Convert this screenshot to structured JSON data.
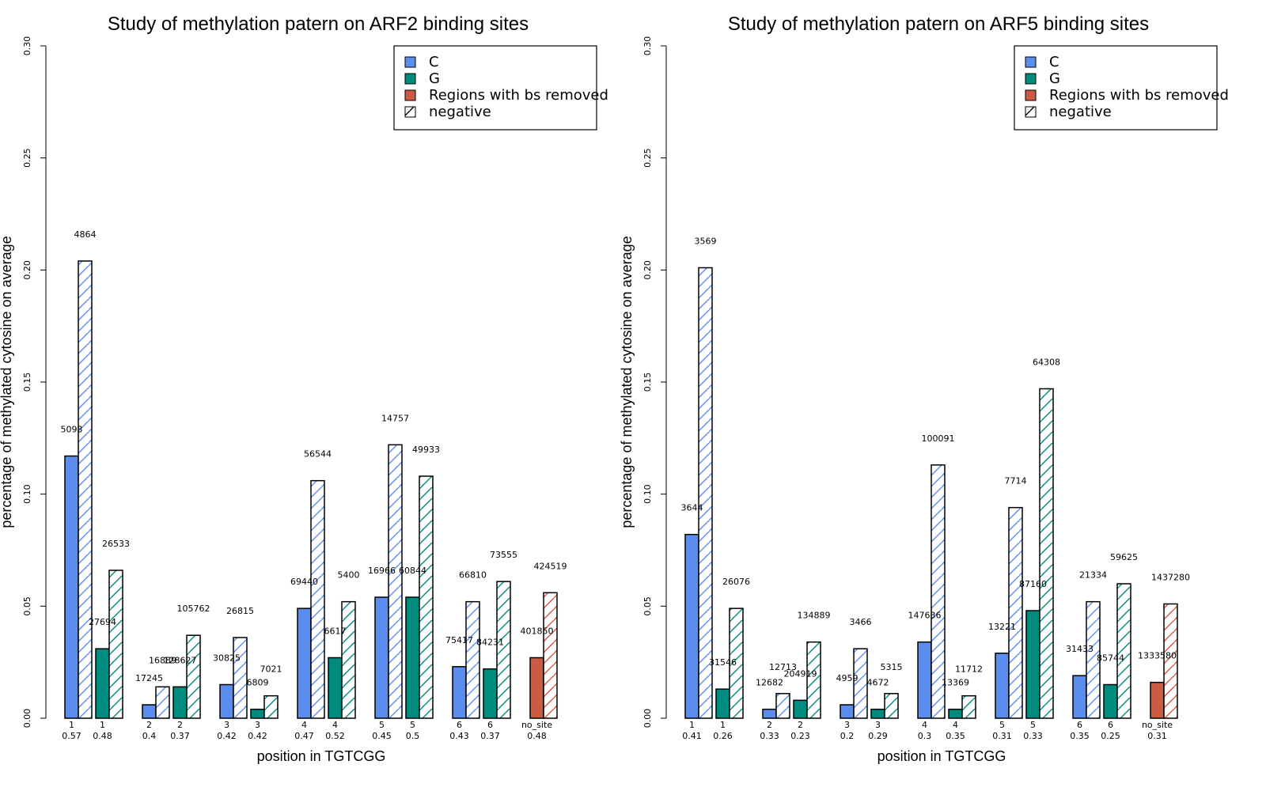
{
  "colors": {
    "C": "#5b8def",
    "G": "#008b7f",
    "Regions with bs removed": "#cd5a43",
    "negative": "#ffffff",
    "outline": "#000000"
  },
  "chart_data": [
    {
      "type": "bar",
      "title": "Study of methylation patern on ARF2 binding sites",
      "xlabel": "position in TGTCGG",
      "ylabel": "percentage of methylated cytosine on average",
      "ylim": [
        0,
        0.3
      ],
      "yticks": [
        "0.00",
        "0.05",
        "0.10",
        "0.15",
        "0.20",
        "0.25",
        "0.30"
      ],
      "legend": {
        "position": "top-right",
        "entries": [
          "C",
          "G",
          "Regions with bs removed",
          "negative"
        ]
      },
      "groups": [
        {
          "label": "1",
          "sublabel": "0.57",
          "base": "C",
          "pos_value": 0.117,
          "pos_count": "5093",
          "neg_value": 0.204,
          "neg_count": "4864"
        },
        {
          "label": "1",
          "sublabel": "0.48",
          "base": "G",
          "pos_value": 0.031,
          "pos_count": "27694",
          "neg_value": 0.066,
          "neg_count": "26533"
        },
        {
          "label": "2",
          "sublabel": "0.4",
          "base": "C",
          "pos_value": 0.006,
          "pos_count": "17245",
          "neg_value": 0.014,
          "neg_count": "16889"
        },
        {
          "label": "2",
          "sublabel": "0.37",
          "base": "G",
          "pos_value": 0.014,
          "pos_count": "128627",
          "neg_value": 0.037,
          "neg_count": "105762"
        },
        {
          "label": "3",
          "sublabel": "0.42",
          "base": "C",
          "pos_value": 0.015,
          "pos_count": "30825",
          "neg_value": 0.036,
          "neg_count": "26815"
        },
        {
          "label": "3",
          "sublabel": "0.42",
          "base": "G",
          "pos_value": 0.004,
          "pos_count": "6809",
          "neg_value": 0.01,
          "neg_count": "7021"
        },
        {
          "label": "4",
          "sublabel": "0.47",
          "base": "C",
          "pos_value": 0.049,
          "pos_count": "69440",
          "neg_value": 0.106,
          "neg_count": "56544"
        },
        {
          "label": "4",
          "sublabel": "0.52",
          "base": "G",
          "pos_value": 0.027,
          "pos_count": "6617",
          "neg_value": 0.052,
          "neg_count": "5400"
        },
        {
          "label": "5",
          "sublabel": "0.45",
          "base": "C",
          "pos_value": 0.054,
          "pos_count": "16966",
          "neg_value": 0.122,
          "neg_count": "14757"
        },
        {
          "label": "5",
          "sublabel": "0.5",
          "base": "G",
          "pos_value": 0.054,
          "pos_count": "60844",
          "neg_value": 0.108,
          "neg_count": "49933"
        },
        {
          "label": "6",
          "sublabel": "0.43",
          "base": "C",
          "pos_value": 0.023,
          "pos_count": "75417",
          "neg_value": 0.052,
          "neg_count": "66810"
        },
        {
          "label": "6",
          "sublabel": "0.37",
          "base": "G",
          "pos_value": 0.022,
          "pos_count": "84231",
          "neg_value": 0.061,
          "neg_count": "73555"
        },
        {
          "label": "no_site",
          "sublabel": "0.48",
          "base": "Regions with bs removed",
          "pos_value": 0.027,
          "pos_count": "401850",
          "neg_value": 0.056,
          "neg_count": "424519"
        }
      ]
    },
    {
      "type": "bar",
      "title": "Study of methylation patern on ARF5 binding sites",
      "xlabel": "position in TGTCGG",
      "ylabel": "percentage of methylated cytosine on average",
      "ylim": [
        0,
        0.3
      ],
      "yticks": [
        "0.00",
        "0.05",
        "0.10",
        "0.15",
        "0.20",
        "0.25",
        "0.30"
      ],
      "legend": {
        "position": "top-right",
        "entries": [
          "C",
          "G",
          "Regions with bs removed",
          "negative"
        ]
      },
      "groups": [
        {
          "label": "1",
          "sublabel": "0.41",
          "base": "C",
          "pos_value": 0.082,
          "pos_count": "3644",
          "neg_value": 0.201,
          "neg_count": "3569"
        },
        {
          "label": "1",
          "sublabel": "0.26",
          "base": "G",
          "pos_value": 0.013,
          "pos_count": "31546",
          "neg_value": 0.049,
          "neg_count": "26076"
        },
        {
          "label": "2",
          "sublabel": "0.33",
          "base": "C",
          "pos_value": 0.004,
          "pos_count": "12682",
          "neg_value": 0.011,
          "neg_count": "12713"
        },
        {
          "label": "2",
          "sublabel": "0.23",
          "base": "G",
          "pos_value": 0.008,
          "pos_count": "204919",
          "neg_value": 0.034,
          "neg_count": "134889"
        },
        {
          "label": "3",
          "sublabel": "0.2",
          "base": "C",
          "pos_value": 0.006,
          "pos_count": "4959",
          "neg_value": 0.031,
          "neg_count": "3466"
        },
        {
          "label": "3",
          "sublabel": "0.29",
          "base": "G",
          "pos_value": 0.004,
          "pos_count": "4672",
          "neg_value": 0.011,
          "neg_count": "5315"
        },
        {
          "label": "4",
          "sublabel": "0.3",
          "base": "C",
          "pos_value": 0.034,
          "pos_count": "147636",
          "neg_value": 0.113,
          "neg_count": "100091"
        },
        {
          "label": "4",
          "sublabel": "0.35",
          "base": "G",
          "pos_value": 0.004,
          "pos_count": "13369",
          "neg_value": 0.01,
          "neg_count": "11712"
        },
        {
          "label": "5",
          "sublabel": "0.31",
          "base": "C",
          "pos_value": 0.029,
          "pos_count": "13221",
          "neg_value": 0.094,
          "neg_count": "7714"
        },
        {
          "label": "5",
          "sublabel": "0.33",
          "base": "G",
          "pos_value": 0.048,
          "pos_count": "87160",
          "neg_value": 0.147,
          "neg_count": "64308"
        },
        {
          "label": "6",
          "sublabel": "0.35",
          "base": "C",
          "pos_value": 0.019,
          "pos_count": "31433",
          "neg_value": 0.052,
          "neg_count": "21334"
        },
        {
          "label": "6",
          "sublabel": "0.25",
          "base": "G",
          "pos_value": 0.015,
          "pos_count": "85744",
          "neg_value": 0.06,
          "neg_count": "59625"
        },
        {
          "label": "no_site",
          "sublabel": "0.31",
          "base": "Regions with bs removed",
          "pos_value": 0.016,
          "pos_count": "1333580",
          "neg_value": 0.051,
          "neg_count": "1437280"
        }
      ]
    }
  ]
}
